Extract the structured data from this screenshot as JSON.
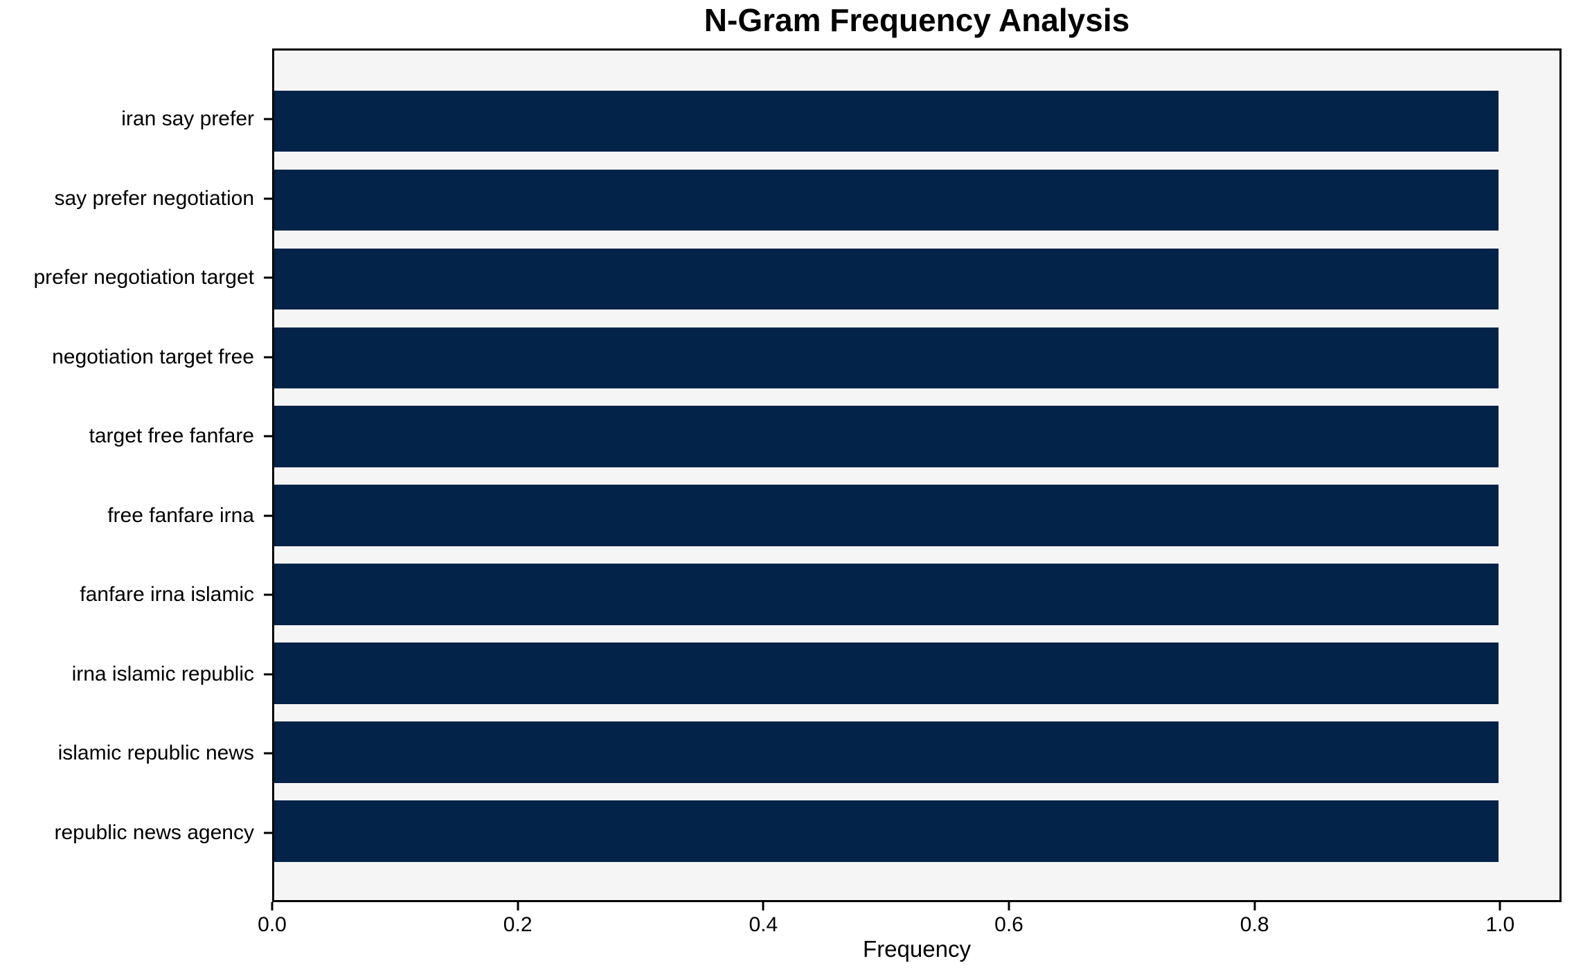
{
  "chart_data": {
    "type": "bar",
    "orientation": "horizontal",
    "title": "N-Gram Frequency Analysis",
    "xlabel": "Frequency",
    "ylabel": "",
    "categories": [
      "iran say prefer",
      "say prefer negotiation",
      "prefer negotiation target",
      "negotiation target free",
      "target free fanfare",
      "free fanfare irna",
      "fanfare irna islamic",
      "irna islamic republic",
      "islamic republic news",
      "republic news agency"
    ],
    "values": [
      1.0,
      1.0,
      1.0,
      1.0,
      1.0,
      1.0,
      1.0,
      1.0,
      1.0,
      1.0
    ],
    "xlim": [
      0,
      1.05
    ],
    "xticks": [
      0.0,
      0.2,
      0.4,
      0.6,
      0.8,
      1.0
    ],
    "xtick_labels": [
      "0.0",
      "0.2",
      "0.4",
      "0.6",
      "0.8",
      "1.0"
    ],
    "grid": false,
    "legend": null,
    "colors": {
      "bar": "#032349",
      "plot_background": "#f5f5f5",
      "figure_background": "#ffffff",
      "spine": "#000000",
      "text": "#000000"
    }
  }
}
